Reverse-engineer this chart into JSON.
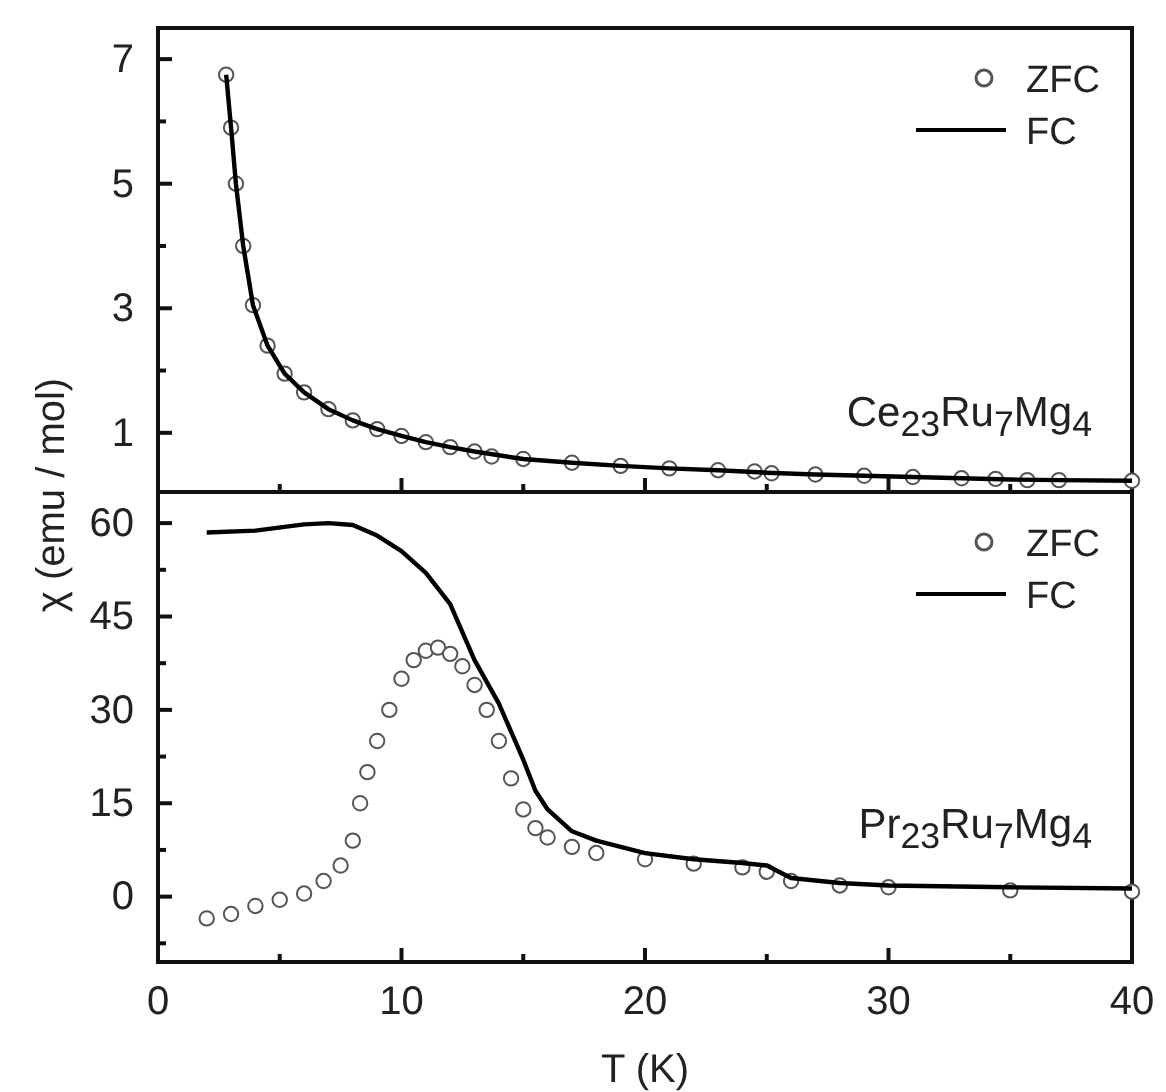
{
  "chart_data": [
    {
      "type": "scatter",
      "ylabel": "χ (emu / mol)",
      "annotations": [
        "Ce$_{23}$Ru$_{7}$Mg$_{4}$"
      ],
      "legend": "top right",
      "tick_labels": "y",
      "xlim": [
        0,
        40
      ],
      "xticks": [
        0,
        {
          "value": 5,
          "label": null
        },
        10,
        {
          "value": 15,
          "label": null
        },
        20,
        {
          "value": 25,
          "label": null
        },
        30,
        {
          "value": 35,
          "label": null
        },
        40
      ],
      "ylim": [
        0.05,
        7.5
      ],
      "yticks": [
        1,
        {
          "value": 2,
          "label": null
        },
        3,
        {
          "value": 4,
          "label": null
        },
        5,
        {
          "value": 6,
          "label": null
        },
        7
      ],
      "series": [
        {
          "name": "ZFC",
          "marker": "circle",
          "color": "#555555",
          "x": [
            2.8,
            3.0,
            3.2,
            3.5,
            3.9,
            4.5,
            5.2,
            6.0,
            7.0,
            8,
            9,
            10,
            11,
            12,
            13,
            13.7,
            15,
            17,
            19,
            21,
            23,
            24.5,
            25.2,
            27,
            29,
            31,
            33,
            34.4,
            35.7,
            37,
            40
          ],
          "values": [
            6.75,
            5.9,
            5.0,
            4.0,
            3.05,
            2.4,
            1.95,
            1.65,
            1.38,
            1.2,
            1.06,
            0.95,
            0.85,
            0.77,
            0.7,
            0.62,
            0.58,
            0.52,
            0.47,
            0.43,
            0.4,
            0.38,
            0.35,
            0.33,
            0.31,
            0.29,
            0.27,
            0.26,
            0.24,
            0.24,
            0.23
          ]
        },
        {
          "name": "FC",
          "type": "line",
          "line_style": "solid",
          "color": "#000000",
          "x": [
            2.8,
            3.0,
            3.2,
            3.5,
            3.9,
            4.5,
            5.2,
            6.0,
            7.0,
            8,
            9,
            10,
            11,
            12,
            13,
            15,
            17,
            19,
            21,
            23,
            25,
            27,
            29,
            31,
            33,
            35,
            37,
            40
          ],
          "values": [
            6.75,
            5.9,
            5.0,
            4.0,
            3.05,
            2.4,
            1.95,
            1.65,
            1.38,
            1.2,
            1.06,
            0.95,
            0.85,
            0.77,
            0.7,
            0.58,
            0.52,
            0.47,
            0.43,
            0.4,
            0.36,
            0.33,
            0.31,
            0.29,
            0.27,
            0.25,
            0.24,
            0.23
          ]
        }
      ]
    },
    {
      "type": "scatter",
      "xlabel": "T (K)",
      "annotations": [
        "Pr$_{23}$Ru$_{7}$Mg$_{4}$"
      ],
      "legend": "top right",
      "xlim": [
        0,
        40
      ],
      "xticks": [
        0,
        {
          "value": 5,
          "label": null
        },
        10,
        {
          "value": 15,
          "label": null
        },
        20,
        {
          "value": 25,
          "label": null
        },
        30,
        {
          "value": 35,
          "label": null
        },
        40
      ],
      "ylim": [
        -10.5,
        65
      ],
      "yticks": [
        {
          "value": -7.5,
          "label": null
        },
        0,
        {
          "value": 7.5,
          "label": null
        },
        15,
        {
          "value": 22.5,
          "label": null
        },
        30,
        {
          "value": 37.5,
          "label": null
        },
        45,
        {
          "value": 52.5,
          "label": null
        },
        60
      ],
      "series": [
        {
          "name": "ZFC",
          "marker": "circle",
          "color": "#555555",
          "x": [
            2,
            3,
            4,
            5,
            6,
            6.8,
            7.5,
            8,
            8.3,
            8.6,
            9,
            9.5,
            10,
            10.5,
            11,
            11.5,
            12,
            12.5,
            13,
            13.5,
            14,
            14.5,
            15,
            15.5,
            16,
            17,
            18,
            20,
            22,
            24,
            25,
            26,
            28,
            30,
            35,
            40
          ],
          "values": [
            -3.5,
            -2.8,
            -1.5,
            -0.5,
            0.5,
            2.5,
            5,
            9,
            15,
            20,
            25,
            30,
            35,
            38,
            39.5,
            40,
            39,
            37,
            34,
            30,
            25,
            19,
            14,
            11,
            9.5,
            8,
            7,
            6,
            5.3,
            4.7,
            4,
            2.5,
            1.8,
            1.5,
            1.0,
            0.8
          ]
        },
        {
          "name": "FC",
          "type": "line",
          "line_style": "solid",
          "color": "#000000",
          "x": [
            2,
            4,
            6,
            7,
            8,
            9,
            10,
            11,
            12,
            13,
            14,
            15,
            15.5,
            16,
            17,
            18,
            20,
            22,
            24,
            25,
            26,
            28,
            30,
            35,
            40
          ],
          "values": [
            58.5,
            58.8,
            59.8,
            60,
            59.7,
            58,
            55.5,
            52,
            47,
            38,
            31,
            22,
            17,
            14,
            10.5,
            9,
            7,
            6,
            5.4,
            5,
            3,
            2.2,
            1.8,
            1.5,
            1.3
          ]
        }
      ]
    }
  ]
}
